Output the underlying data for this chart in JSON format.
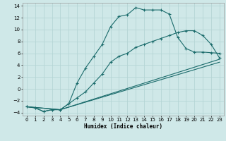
{
  "xlabel": "Humidex (Indice chaleur)",
  "bg_color": "#cfe8e8",
  "grid_color": "#b5d5d5",
  "line_color": "#1a6b6b",
  "xlim": [
    -0.5,
    23.5
  ],
  "ylim": [
    -4.5,
    14.5
  ],
  "xticks": [
    0,
    1,
    2,
    3,
    4,
    5,
    6,
    7,
    8,
    9,
    10,
    11,
    12,
    13,
    14,
    15,
    16,
    17,
    18,
    19,
    20,
    21,
    22,
    23
  ],
  "yticks": [
    -4,
    -2,
    0,
    2,
    4,
    6,
    8,
    10,
    12,
    14
  ],
  "line1_x": [
    0,
    1,
    2,
    3,
    4,
    5,
    6,
    7,
    8,
    9,
    10,
    11,
    12,
    13,
    14,
    15,
    16,
    17,
    18,
    19,
    20,
    21,
    22,
    23
  ],
  "line1_y": [
    -3.0,
    -3.2,
    -3.8,
    -3.5,
    -3.5,
    -2.5,
    1.0,
    3.5,
    5.5,
    7.5,
    10.5,
    12.2,
    12.5,
    13.7,
    13.3,
    13.3,
    13.3,
    12.6,
    8.7,
    6.8,
    6.2,
    6.2,
    6.1,
    6.0
  ],
  "line2_x": [
    0,
    1,
    2,
    3,
    4,
    5,
    6,
    7,
    8,
    9,
    10,
    11,
    12,
    13,
    14,
    15,
    16,
    17,
    18,
    19,
    20,
    21,
    22,
    23
  ],
  "line2_y": [
    -3.0,
    -3.2,
    -3.8,
    -3.5,
    -3.5,
    -2.5,
    -1.5,
    -0.5,
    1.0,
    2.5,
    4.5,
    5.5,
    6.0,
    7.0,
    7.5,
    8.0,
    8.5,
    9.0,
    9.5,
    9.8,
    9.8,
    9.0,
    7.5,
    5.2
  ],
  "line3_x": [
    0,
    4,
    23
  ],
  "line3_y": [
    -3.0,
    -3.5,
    5.0
  ],
  "line4_x": [
    0,
    4,
    23
  ],
  "line4_y": [
    -3.0,
    -3.5,
    4.5
  ]
}
